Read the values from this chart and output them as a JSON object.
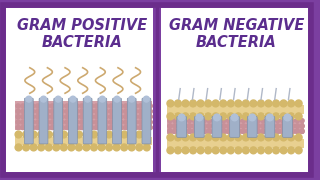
{
  "bg_color": "#ffffff",
  "border_color": "#6b2d8b",
  "divider_color": "#6b2d8b",
  "title_left": "GRAM POSITIVE\nBACTERIA",
  "title_right": "GRAM NEGATIVE\nBACTERIA",
  "title_color": "#5b2d8e",
  "title_fontsize": 10.5,
  "outer_bg": "#7b3fa0",
  "membrane_pink": "#d4a0a8",
  "membrane_yellow": "#d4b86a",
  "membrane_yellow_light": "#e8d090",
  "peptidoglycan_dot": "#c89098",
  "protein_color": "#a0b0c8",
  "protein_edge": "#8090a8",
  "protein_cap": "#b0c0d8",
  "flagella_color": "#c8a060",
  "pili_color": "#b0b8c8"
}
